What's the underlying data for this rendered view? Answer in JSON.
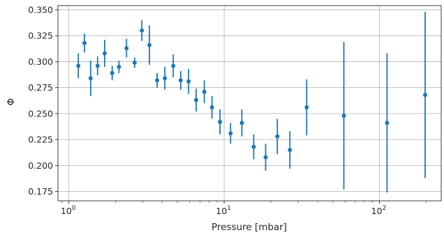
{
  "chart_data": {
    "type": "scatter",
    "title": "",
    "xlabel": "Pressure [mbar]",
    "ylabel": "Φ",
    "xscale": "log",
    "xlim": [
      0.85,
      250
    ],
    "ylim": [
      0.166,
      0.354
    ],
    "grid": true,
    "color": "#1f77b4",
    "x_ticks": [
      {
        "value": 1,
        "label_base": "10",
        "label_exp": "0"
      },
      {
        "value": 10,
        "label_base": "10",
        "label_exp": "1"
      },
      {
        "value": 100,
        "label_base": "10",
        "label_exp": "2"
      }
    ],
    "y_ticks": [
      {
        "value": 0.175,
        "label": "0.175"
      },
      {
        "value": 0.2,
        "label": "0.200"
      },
      {
        "value": 0.225,
        "label": "0.225"
      },
      {
        "value": 0.25,
        "label": "0.250"
      },
      {
        "value": 0.275,
        "label": "0.275"
      },
      {
        "value": 0.3,
        "label": "0.300"
      },
      {
        "value": 0.325,
        "label": "0.325"
      },
      {
        "value": 0.35,
        "label": "0.350"
      }
    ],
    "points": [
      {
        "x": 1.15,
        "y": 0.296,
        "yerr": 0.012
      },
      {
        "x": 1.26,
        "y": 0.318,
        "yerr": 0.009
      },
      {
        "x": 1.38,
        "y": 0.284,
        "yerr": 0.017
      },
      {
        "x": 1.53,
        "y": 0.296,
        "yerr": 0.009
      },
      {
        "x": 1.7,
        "y": 0.308,
        "yerr": 0.013
      },
      {
        "x": 1.9,
        "y": 0.289,
        "yerr": 0.007
      },
      {
        "x": 2.1,
        "y": 0.295,
        "yerr": 0.006
      },
      {
        "x": 2.35,
        "y": 0.313,
        "yerr": 0.009
      },
      {
        "x": 2.65,
        "y": 0.299,
        "yerr": 0.005
      },
      {
        "x": 2.95,
        "y": 0.33,
        "yerr": 0.01
      },
      {
        "x": 3.3,
        "y": 0.316,
        "yerr": 0.019
      },
      {
        "x": 3.7,
        "y": 0.282,
        "yerr": 0.007
      },
      {
        "x": 4.15,
        "y": 0.284,
        "yerr": 0.011
      },
      {
        "x": 4.7,
        "y": 0.296,
        "yerr": 0.011
      },
      {
        "x": 5.25,
        "y": 0.282,
        "yerr": 0.009
      },
      {
        "x": 5.9,
        "y": 0.281,
        "yerr": 0.012
      },
      {
        "x": 6.6,
        "y": 0.263,
        "yerr": 0.011
      },
      {
        "x": 7.45,
        "y": 0.271,
        "yerr": 0.011
      },
      {
        "x": 8.35,
        "y": 0.256,
        "yerr": 0.011
      },
      {
        "x": 9.4,
        "y": 0.242,
        "yerr": 0.012
      },
      {
        "x": 11.0,
        "y": 0.231,
        "yerr": 0.01
      },
      {
        "x": 13.0,
        "y": 0.241,
        "yerr": 0.013
      },
      {
        "x": 15.5,
        "y": 0.218,
        "yerr": 0.012
      },
      {
        "x": 18.5,
        "y": 0.208,
        "yerr": 0.013
      },
      {
        "x": 22.0,
        "y": 0.228,
        "yerr": 0.017
      },
      {
        "x": 26.5,
        "y": 0.215,
        "yerr": 0.018
      },
      {
        "x": 34.0,
        "y": 0.256,
        "yerr": 0.027
      },
      {
        "x": 59.0,
        "y": 0.248,
        "yerr": 0.071
      },
      {
        "x": 112.0,
        "y": 0.241,
        "yerr": 0.067
      },
      {
        "x": 197.0,
        "y": 0.268,
        "yerr": 0.08
      }
    ]
  }
}
